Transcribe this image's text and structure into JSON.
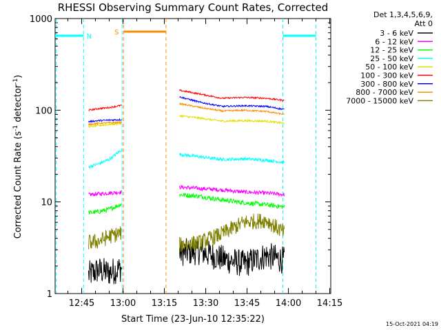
{
  "chart_data": {
    "type": "line",
    "title": "RHESSI Observing Summary Count Rates, Corrected",
    "xlabel": "Start Time (23-Jun-10 12:35:22)",
    "ylabel_main": "Corrected Count Rate (s",
    "ylabel_sup1": "-1",
    "ylabel_mid": " detector",
    "ylabel_sup2": "-1",
    "ylabel_end": ")",
    "yscale": "log",
    "ylim": [
      1,
      1000
    ],
    "xlim_minutes": [
      35.37,
      135.37
    ],
    "x_ticks": [
      {
        "label": "12:45",
        "minutes": 45
      },
      {
        "label": "13:00",
        "minutes": 60
      },
      {
        "label": "13:15",
        "minutes": 75
      },
      {
        "label": "13:30",
        "minutes": 90
      },
      {
        "label": "13:45",
        "minutes": 105
      },
      {
        "label": "14:00",
        "minutes": 120
      },
      {
        "label": "14:15",
        "minutes": 135
      }
    ],
    "y_ticks": [
      {
        "label": "1",
        "value": 1
      },
      {
        "label": "10",
        "value": 10
      },
      {
        "label": "100",
        "value": 100
      },
      {
        "label": "1000",
        "value": 1000
      }
    ],
    "legend_header": [
      "Det 1,3,4,5,6,9,",
      "Att 0"
    ],
    "legend_placement": "right",
    "series": [
      {
        "name": "3 - 6 keV",
        "color": "#000000",
        "segments": [
          {
            "x": [
              47.5,
              51,
              55,
              59.5
            ],
            "y": [
              1.6,
              1.8,
              1.7,
              1.9
            ],
            "noise": 0.35
          },
          {
            "x": [
              80.5,
              88,
              96,
              104,
              112,
              118.5
            ],
            "y": [
              2.8,
              2.9,
              2.4,
              2.1,
              2.6,
              2.3
            ],
            "noise": 0.35
          }
        ]
      },
      {
        "name": "6 - 12 keV",
        "color": "#ff00ff",
        "segments": [
          {
            "x": [
              47.5,
              51,
              55,
              59.5
            ],
            "y": [
              12,
              12.2,
              12.5,
              12.8
            ],
            "noise": 0.05
          },
          {
            "x": [
              80.5,
              88,
              96,
              104,
              112,
              118.5
            ],
            "y": [
              14.5,
              14,
              13.5,
              12.8,
              12.5,
              12
            ],
            "noise": 0.05
          }
        ]
      },
      {
        "name": "12 - 25 keV",
        "color": "#00ff00",
        "segments": [
          {
            "x": [
              47.5,
              51,
              55,
              59.5
            ],
            "y": [
              7.6,
              7.8,
              8.3,
              9.5
            ],
            "noise": 0.06
          },
          {
            "x": [
              80.5,
              88,
              96,
              104,
              112,
              118.5
            ],
            "y": [
              12,
              11.5,
              10.5,
              9.8,
              9.3,
              8.8
            ],
            "noise": 0.06
          }
        ]
      },
      {
        "name": "25 - 50 keV",
        "color": "#00ffff",
        "segments": [
          {
            "x": [
              47.5,
              51,
              55,
              59.5
            ],
            "y": [
              24,
              26,
              29,
              37
            ],
            "noise": 0.04
          },
          {
            "x": [
              80.5,
              88,
              96,
              104,
              112,
              118.5
            ],
            "y": [
              33,
              31,
              29,
              29.5,
              28.5,
              27
            ],
            "noise": 0.04
          }
        ]
      },
      {
        "name": "50 - 100 keV",
        "color": "#e0e000",
        "segments": [
          {
            "x": [
              47.5,
              51,
              55,
              59.5
            ],
            "y": [
              66,
              68,
              70,
              72
            ],
            "noise": 0.025
          },
          {
            "x": [
              80.5,
              88,
              96,
              104,
              112,
              118.5
            ],
            "y": [
              87,
              82,
              76,
              77,
              76,
              72
            ],
            "noise": 0.025
          }
        ]
      },
      {
        "name": "100 - 300 keV",
        "color": "#ff0000",
        "segments": [
          {
            "x": [
              47.5,
              51,
              55,
              59.5
            ],
            "y": [
              100,
              104,
              107,
              113
            ],
            "noise": 0.02
          },
          {
            "x": [
              80.5,
              88,
              96,
              104,
              112,
              118.5
            ],
            "y": [
              165,
              150,
              135,
              138,
              135,
              128
            ],
            "noise": 0.02
          }
        ]
      },
      {
        "name": "300 - 800 keV",
        "color": "#0000ff",
        "segments": [
          {
            "x": [
              47.5,
              51,
              55,
              59.5
            ],
            "y": [
              75,
              77,
              78,
              79
            ],
            "noise": 0.02
          },
          {
            "x": [
              80.5,
              88,
              96,
              104,
              112,
              118.5
            ],
            "y": [
              140,
              122,
              110,
              112,
              110,
              102
            ],
            "noise": 0.02
          }
        ]
      },
      {
        "name": "800 - 7000 keV",
        "color": "#ff8c00",
        "segments": [
          {
            "x": [
              47.5,
              51,
              55,
              59.5
            ],
            "y": [
              70,
              72,
              73,
              74
            ],
            "noise": 0.02
          },
          {
            "x": [
              80.5,
              88,
              96,
              104,
              112,
              118.5
            ],
            "y": [
              118,
              107,
              98,
              100,
              97,
              90
            ],
            "noise": 0.02
          }
        ]
      },
      {
        "name": "7000 - 15000 keV",
        "color": "#808000",
        "segments": [
          {
            "x": [
              47.5,
              51,
              55,
              59.5
            ],
            "y": [
              3.6,
              3.7,
              4.2,
              4.6
            ],
            "noise": 0.2
          },
          {
            "x": [
              80.5,
              88,
              96,
              104,
              112,
              118.5
            ],
            "y": [
              3.4,
              3.6,
              4.5,
              6.0,
              6.3,
              4.6
            ],
            "noise": 0.2
          }
        ]
      }
    ],
    "flags": [
      {
        "label": "N",
        "color": "#00ffff",
        "bar_y": 650,
        "bar_ranges": [
          [
            35.37,
            45.7
          ],
          [
            118,
            130
          ]
        ],
        "vlines": [
          35.8,
          45.7,
          59.7,
          118,
          130
        ]
      },
      {
        "label": "S",
        "color": "#ff8c00",
        "bar_y": 720,
        "bar_ranges": [
          [
            60.2,
            75.6
          ]
        ],
        "vlines": [
          60.2,
          75.6
        ]
      }
    ]
  },
  "footer": {
    "timestamp": "15-Oct-2021 04:19"
  }
}
